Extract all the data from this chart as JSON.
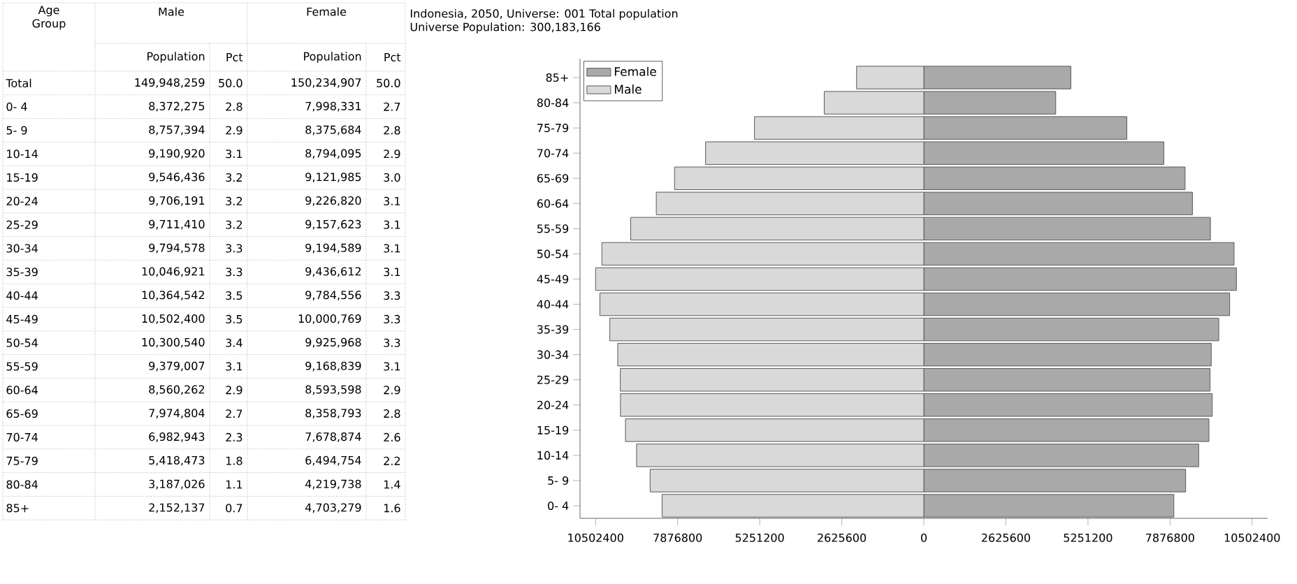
{
  "chart_data": [
    {
      "type": "other",
      "annotations": [
        "Age Group",
        "Male",
        "Female"
      ],
      "categories": [
        "Total",
        "0- 4",
        "5- 9",
        "10-14",
        "15-19",
        "20-24",
        "25-29",
        "30-34",
        "35-39",
        "40-44",
        "45-49",
        "50-54",
        "55-59",
        "60-64",
        "65-69",
        "70-74",
        "75-79",
        "80-84",
        "85+"
      ],
      "series": [
        {
          "name": "Population",
          "values": [
            149948259,
            8372275,
            8757394,
            9190920,
            9546436,
            9706191,
            9711410,
            9794578,
            10046921,
            10364542,
            10502400,
            10300540,
            9379007,
            8560262,
            7974804,
            6982943,
            5418473,
            3187026,
            2152137
          ],
          "value_labels": [
            "149,948,259",
            "8,372,275",
            "8,757,394",
            "9,190,920",
            "9,546,436",
            "9,706,191",
            "9,711,410",
            "9,794,578",
            "10,046,921",
            "10,364,542",
            "10,502,400",
            "10,300,540",
            "9,379,007",
            "8,560,262",
            "7,974,804",
            "6,982,943",
            "5,418,473",
            "3,187,026",
            "2,152,137"
          ]
        },
        {
          "name": "Pct",
          "values": [
            50.0,
            2.8,
            2.9,
            3.1,
            3.2,
            3.2,
            3.2,
            3.3,
            3.3,
            3.5,
            3.5,
            3.4,
            3.1,
            2.9,
            2.7,
            2.3,
            1.8,
            1.1,
            0.7
          ],
          "value_labels": [
            "50.0",
            "2.8",
            "2.9",
            "3.1",
            "3.2",
            "3.2",
            "3.2",
            "3.3",
            "3.3",
            "3.5",
            "3.5",
            "3.4",
            "3.1",
            "2.9",
            "2.7",
            "2.3",
            "1.8",
            "1.1",
            "0.7"
          ]
        },
        {
          "name": "Population",
          "values": [
            150234907,
            7998331,
            8375684,
            8794095,
            9121985,
            9226820,
            9157623,
            9194589,
            9436612,
            9784556,
            10000769,
            9925968,
            9168839,
            8593598,
            8358793,
            7678874,
            6494754,
            4219738,
            4703279
          ],
          "value_labels": [
            "150,234,907",
            "7,998,331",
            "8,375,684",
            "8,794,095",
            "9,121,985",
            "9,226,820",
            "9,157,623",
            "9,194,589",
            "9,436,612",
            "9,784,556",
            "10,000,769",
            "9,925,968",
            "9,168,839",
            "8,593,598",
            "8,358,793",
            "7,678,874",
            "6,494,754",
            "4,219,738",
            "4,703,279"
          ]
        },
        {
          "name": "Pct",
          "values": [
            50.0,
            2.7,
            2.8,
            2.9,
            3.0,
            3.1,
            3.1,
            3.1,
            3.1,
            3.3,
            3.3,
            3.3,
            3.1,
            2.9,
            2.8,
            2.6,
            2.2,
            1.4,
            1.6
          ],
          "value_labels": [
            "50.0",
            "2.7",
            "2.8",
            "2.9",
            "3.0",
            "3.1",
            "3.1",
            "3.1",
            "3.1",
            "3.3",
            "3.3",
            "3.3",
            "3.1",
            "2.9",
            "2.8",
            "2.6",
            "2.2",
            "1.4",
            "1.6"
          ]
        }
      ]
    },
    {
      "type": "bar",
      "orientation": "horizontal",
      "stacked": true,
      "title": "Indonesia, 2050, Universe: 001 Total population",
      "subtitle": "Universe Population: 300,183,166",
      "categories": [
        "85+",
        "80-84",
        "75-79",
        "70-74",
        "65-69",
        "60-64",
        "55-59",
        "50-54",
        "45-49",
        "40-44",
        "35-39",
        "30-34",
        "25-29",
        "20-24",
        "15-19",
        "10-14",
        "5- 9",
        "0- 4"
      ],
      "series": [
        {
          "name": "Female",
          "color": "#a9a9a9",
          "values": [
            4703279,
            4219738,
            6494754,
            7678874,
            8358793,
            8593598,
            9168839,
            9925968,
            10000769,
            9784556,
            9436612,
            9194589,
            9157623,
            9226820,
            9121985,
            8794095,
            8375684,
            7998331
          ]
        },
        {
          "name": "Male",
          "color": "#d9d9d9",
          "values": [
            -2152137,
            -3187026,
            -5418473,
            -6982943,
            -7974804,
            -8560262,
            -9379007,
            -10300540,
            -10502400,
            -10364542,
            -10046921,
            -9794578,
            -9711410,
            -9706191,
            -9546436,
            -9190920,
            -8757394,
            -8372275
          ]
        }
      ],
      "xlim": [
        -11000000,
        11000000
      ],
      "xticks": [
        {
          "value": -10502400,
          "label": "10502400"
        },
        {
          "value": -7876800,
          "label": "7876800"
        },
        {
          "value": -5251200,
          "label": "5251200"
        },
        {
          "value": -2625600,
          "label": "2625600"
        },
        0,
        2625600,
        5251200,
        7876800,
        10502400
      ],
      "legend": "top left"
    }
  ]
}
